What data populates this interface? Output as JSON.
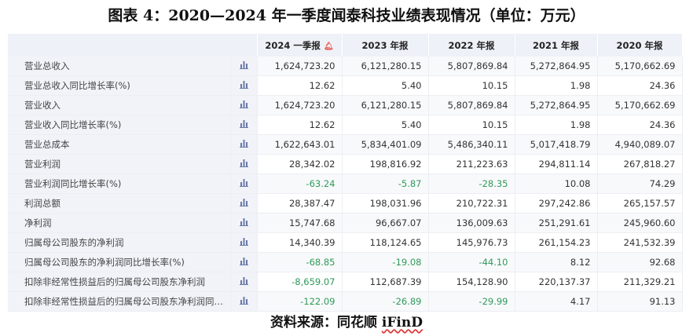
{
  "title": "图表 4：2020—2024 年一季度闻泰科技业绩表现情况（单位：万元）",
  "columns": [
    "2024 一季报",
    "2023 年报",
    "2022 年报",
    "2021 年报",
    "2020 年报"
  ],
  "alert_icon": "bell-icon",
  "row_icon": "bar-chart-icon",
  "rows": [
    {
      "label": "营业总收入",
      "values": [
        "1,624,723.20",
        "6,121,280.15",
        "5,807,869.84",
        "5,272,864.95",
        "5,170,662.69"
      ]
    },
    {
      "label": "营业总收入同比增长率(%)",
      "values": [
        "12.62",
        "5.40",
        "10.15",
        "1.98",
        "24.36"
      ]
    },
    {
      "label": "营业收入",
      "values": [
        "1,624,723.20",
        "6,121,280.15",
        "5,807,869.84",
        "5,272,864.95",
        "5,170,662.69"
      ]
    },
    {
      "label": "营业收入同比增长率(%)",
      "values": [
        "12.62",
        "5.40",
        "10.15",
        "1.98",
        "24.36"
      ]
    },
    {
      "label": "营业总成本",
      "values": [
        "1,622,643.01",
        "5,834,401.09",
        "5,486,340.11",
        "5,017,418.79",
        "4,940,089.07"
      ]
    },
    {
      "label": "营业利润",
      "values": [
        "28,342.02",
        "198,816.92",
        "211,223.63",
        "294,811.14",
        "267,818.27"
      ]
    },
    {
      "label": "营业利润同比增长率(%)",
      "values": [
        "-63.24",
        "-5.87",
        "-28.35",
        "10.08",
        "74.29"
      ]
    },
    {
      "label": "利润总额",
      "values": [
        "28,387.47",
        "198,031.96",
        "210,722.31",
        "297,242.86",
        "265,157.57"
      ]
    },
    {
      "label": "净利润",
      "values": [
        "15,747.68",
        "96,667.07",
        "136,009.63",
        "251,291.61",
        "245,960.60"
      ]
    },
    {
      "label": "归属母公司股东的净利润",
      "values": [
        "14,340.39",
        "118,124.65",
        "145,976.73",
        "261,154.23",
        "241,532.39"
      ]
    },
    {
      "label": "归属母公司股东的净利润同比增长率(%)",
      "values": [
        "-68.85",
        "-19.08",
        "-44.10",
        "8.12",
        "92.68"
      ]
    },
    {
      "label": "扣除非经常性损益后的归属母公司股东净利润",
      "values": [
        "-8,659.07",
        "112,687.39",
        "154,128.90",
        "220,137.37",
        "211,329.21"
      ]
    },
    {
      "label": "扣除非经常性损益后的归属母公司股东净利润同比增...",
      "values": [
        "-122.09",
        "-26.89",
        "-29.99",
        "4.17",
        "91.13"
      ]
    }
  ],
  "source_prefix": "资料来源：同花顺 ",
  "source_brand": "iFinD",
  "colors": {
    "negative": "#2e9a5a",
    "header_bg": "#eef1f7",
    "label_bg": "#f1f3f9",
    "alert": "#e8534a"
  }
}
